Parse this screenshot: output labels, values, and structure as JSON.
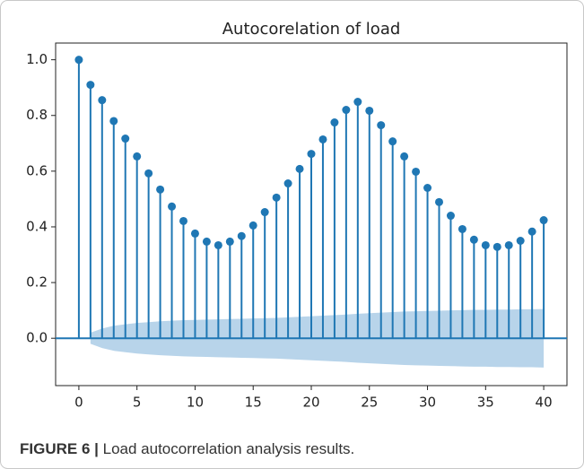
{
  "chart_data": {
    "type": "stem",
    "title": "Autocorelation of load",
    "x": [
      0,
      1,
      2,
      3,
      4,
      5,
      6,
      7,
      8,
      9,
      10,
      11,
      12,
      13,
      14,
      15,
      16,
      17,
      18,
      19,
      20,
      21,
      22,
      23,
      24,
      25,
      26,
      27,
      28,
      29,
      30,
      31,
      32,
      33,
      34,
      35,
      36,
      37,
      38,
      39,
      40
    ],
    "values": [
      1.0,
      0.91,
      0.855,
      0.78,
      0.717,
      0.653,
      0.592,
      0.534,
      0.473,
      0.421,
      0.376,
      0.347,
      0.334,
      0.347,
      0.367,
      0.405,
      0.453,
      0.505,
      0.556,
      0.608,
      0.662,
      0.714,
      0.775,
      0.82,
      0.849,
      0.817,
      0.765,
      0.707,
      0.653,
      0.598,
      0.54,
      0.489,
      0.44,
      0.392,
      0.354,
      0.334,
      0.328,
      0.334,
      0.35,
      0.383,
      0.424
    ],
    "confint": [
      null,
      0.02,
      0.035,
      0.045,
      0.05,
      0.055,
      0.058,
      0.061,
      0.063,
      0.065,
      0.066,
      0.067,
      0.068,
      0.069,
      0.07,
      0.071,
      0.072,
      0.073,
      0.075,
      0.077,
      0.079,
      0.081,
      0.083,
      0.085,
      0.088,
      0.09,
      0.092,
      0.094,
      0.096,
      0.097,
      0.098,
      0.099,
      0.1,
      0.101,
      0.102,
      0.102,
      0.103,
      0.103,
      0.104,
      0.104,
      0.105
    ],
    "color": "#1f77b4",
    "band_color": "#b8d4ea",
    "xlim": [
      -2,
      42
    ],
    "xticks": [
      0,
      5,
      10,
      15,
      20,
      25,
      30,
      35,
      40
    ],
    "ylim": [
      -0.17,
      1.06
    ],
    "yticks": [
      {
        "value": 0,
        "label": "0.0"
      },
      0.2,
      0.4,
      0.6,
      0.8,
      {
        "value": 1,
        "label": "1.0"
      }
    ]
  },
  "caption": {
    "label": "FIGURE 6 |",
    "text": "Load autocorrelation analysis results."
  }
}
